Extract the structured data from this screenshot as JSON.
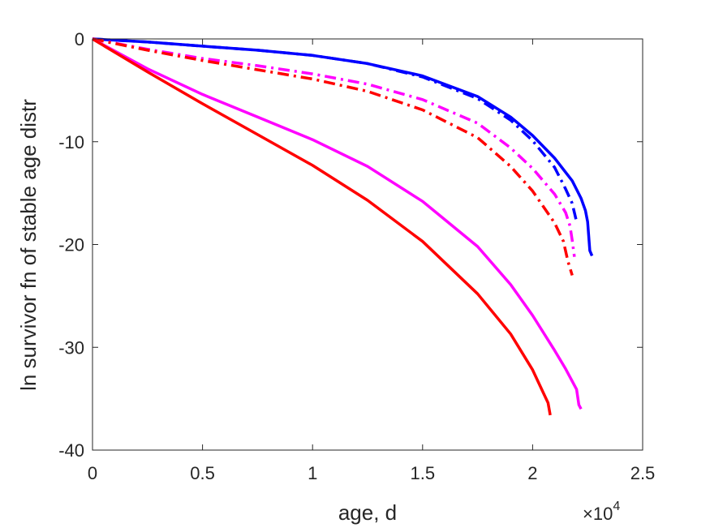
{
  "chart_data": {
    "type": "line",
    "xlabel": "age, d",
    "ylabel": "ln survivor fn of stable age distr",
    "x_multiplier": {
      "base": "×10",
      "exponent": "4"
    },
    "xlim": [
      0,
      2.5
    ],
    "ylim": [
      -40,
      0
    ],
    "xticks": [
      0,
      0.5,
      1,
      1.5,
      2,
      2.5
    ],
    "xtick_labels": [
      "0",
      "0.5",
      "1",
      "1.5",
      "2",
      "2.5"
    ],
    "yticks": [
      0,
      -10,
      -20,
      -30,
      -40
    ],
    "ytick_labels": [
      "0",
      "-10",
      "-20",
      "-30",
      "-40"
    ],
    "grid": false,
    "series": [
      {
        "color": "#0000ff",
        "style": "solid",
        "x": [
          0,
          0.25,
          0.5,
          0.75,
          1.0,
          1.25,
          1.5,
          1.75,
          1.9,
          2.0,
          2.1,
          2.18,
          2.22,
          2.24,
          2.25,
          2.26,
          2.27
        ],
        "y": [
          0,
          -0.3,
          -0.7,
          -1.1,
          -1.6,
          -2.4,
          -3.6,
          -5.6,
          -7.6,
          -9.4,
          -11.6,
          -13.8,
          -15.5,
          -16.7,
          -17.8,
          -20.6,
          -21.1
        ]
      },
      {
        "color": "#0000ff",
        "style": "dashdot",
        "x": [
          0,
          0.25,
          0.5,
          0.75,
          1.0,
          1.25,
          1.5,
          1.75,
          1.9,
          2.0,
          2.1,
          2.15,
          2.18,
          2.2
        ],
        "y": [
          0,
          -0.3,
          -0.7,
          -1.1,
          -1.6,
          -2.4,
          -3.7,
          -5.8,
          -7.9,
          -9.9,
          -12.5,
          -14.6,
          -16.0,
          -17.8
        ]
      },
      {
        "color": "#ff00ff",
        "style": "dashdot",
        "x": [
          0,
          0.25,
          0.5,
          0.75,
          1.0,
          1.25,
          1.5,
          1.75,
          1.9,
          2.0,
          2.1,
          2.15,
          2.17,
          2.18,
          2.19
        ],
        "y": [
          0,
          -1.0,
          -1.9,
          -2.6,
          -3.4,
          -4.4,
          -5.9,
          -8.2,
          -10.6,
          -12.6,
          -15.1,
          -16.9,
          -18.2,
          -19.6,
          -21.2
        ]
      },
      {
        "color": "#ff0000",
        "style": "dashdot",
        "x": [
          0,
          0.25,
          0.5,
          0.75,
          1.0,
          1.25,
          1.5,
          1.75,
          1.9,
          2.0,
          2.1,
          2.14,
          2.16,
          2.18
        ],
        "y": [
          0,
          -1.1,
          -2.1,
          -3.0,
          -3.9,
          -5.1,
          -6.9,
          -9.6,
          -12.4,
          -14.8,
          -17.9,
          -19.7,
          -21.6,
          -23.0
        ]
      },
      {
        "color": "#ff00ff",
        "style": "solid",
        "x": [
          0,
          0.25,
          0.5,
          0.75,
          1.0,
          1.25,
          1.5,
          1.75,
          1.9,
          2.0,
          2.1,
          2.15,
          2.18,
          2.2,
          2.21,
          2.22
        ],
        "y": [
          0,
          -2.9,
          -5.4,
          -7.6,
          -9.8,
          -12.4,
          -15.8,
          -20.2,
          -23.9,
          -26.9,
          -30.3,
          -32.1,
          -33.3,
          -34.1,
          -35.6,
          -36.0
        ]
      },
      {
        "color": "#ff0000",
        "style": "solid",
        "x": [
          0,
          0.25,
          0.5,
          0.75,
          1.0,
          1.25,
          1.5,
          1.75,
          1.9,
          2.0,
          2.05,
          2.07,
          2.08
        ],
        "y": [
          0,
          -3.2,
          -6.3,
          -9.3,
          -12.3,
          -15.7,
          -19.7,
          -24.8,
          -28.7,
          -32.2,
          -34.5,
          -35.4,
          -36.6
        ]
      }
    ]
  }
}
